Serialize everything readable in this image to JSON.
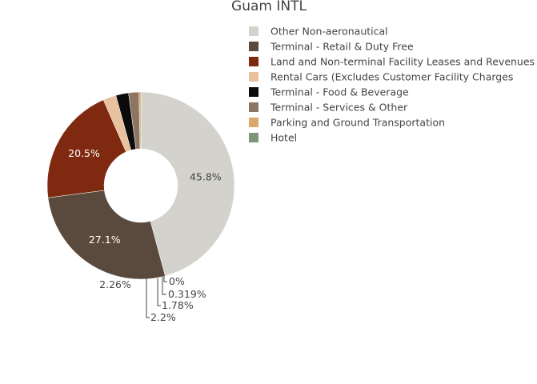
{
  "chart_data": {
    "type": "pie",
    "hole": true,
    "title": "Guam INTL",
    "legend_position": "top-right",
    "slices": [
      {
        "label": "Other Non-aeronautical",
        "value": 45.8,
        "display": "45.8%",
        "color": "#d3d2cc"
      },
      {
        "label": "Terminal - Retail & Duty Free",
        "value": 27.1,
        "display": "27.1%",
        "color": "#5a4a3d"
      },
      {
        "label": "Land and Non-terminal Facility Leases and Revenues",
        "value": 20.5,
        "display": "20.5%",
        "color": "#7f2a10"
      },
      {
        "label": "Rental Cars (Excludes Customer Facility Charges",
        "value": 2.26,
        "display": "2.26%",
        "color": "#e8c19e"
      },
      {
        "label": "Terminal - Food & Beverage",
        "value": 2.2,
        "display": "2.2%",
        "color": "#0b0b0b"
      },
      {
        "label": "Terminal - Services & Other",
        "value": 1.78,
        "display": "1.78%",
        "color": "#8c7563"
      },
      {
        "label": "Parking and Ground Transportation",
        "value": 0.319,
        "display": "0.319%",
        "color": "#dba76a"
      },
      {
        "label": "Hotel",
        "value": 0.0,
        "display": "0%",
        "color": "#7f9579"
      }
    ]
  }
}
